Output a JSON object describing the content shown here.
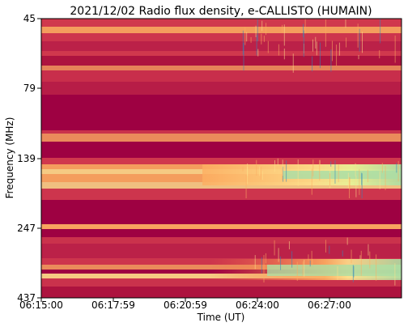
{
  "chart_data": {
    "type": "heatmap",
    "title": "2021/12/02  Radio flux density, e-CALLISTO (HUMAIN)",
    "xlabel": "Time (UT)",
    "ylabel": "Frequency (MHz)",
    "x_ticks": [
      "06:15:00",
      "06:17:59",
      "06:20:59",
      "06:24:00",
      "06:27:00"
    ],
    "y_ticks": [
      "45",
      "79",
      "139",
      "247",
      "437"
    ],
    "x_range": [
      "06:15:00",
      "06:30:05"
    ],
    "y_range": [
      45,
      437
    ],
    "y_scale": "log",
    "colormap": "Spectral",
    "colors": {
      "low": "#9e0142",
      "mid_low": "#d53e4f",
      "mid": "#fdae61",
      "high": "#fee08b",
      "peak": "#abdda4",
      "max": "#3288bd"
    }
  }
}
